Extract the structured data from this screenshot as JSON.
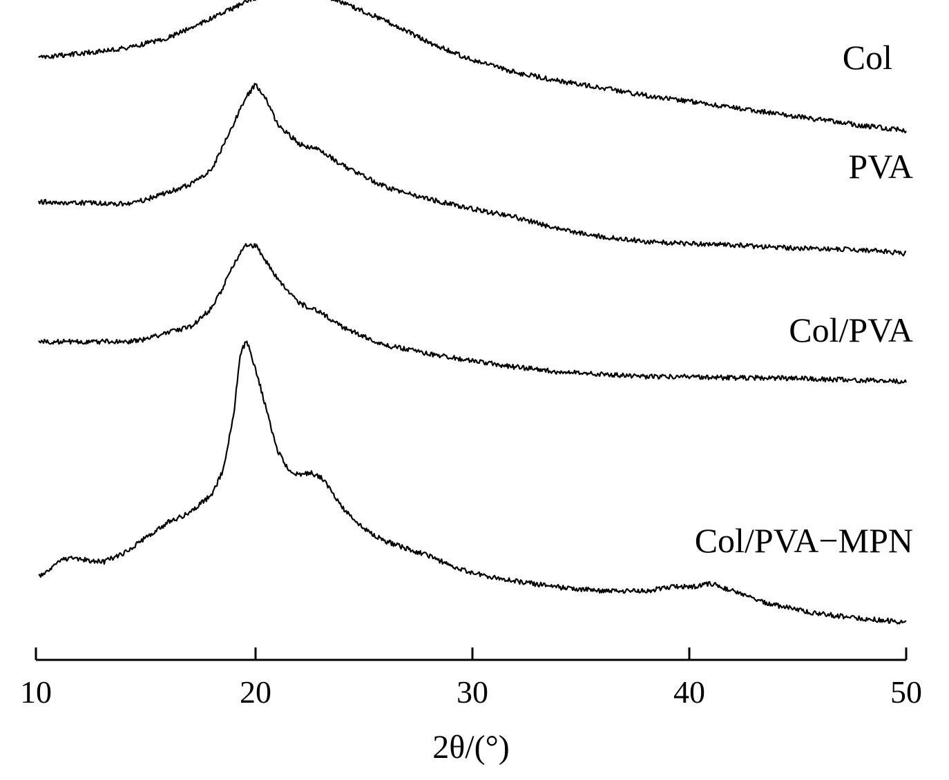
{
  "chart_data": {
    "type": "line",
    "title": "",
    "xlabel": "2θ/(°)",
    "ylabel": "",
    "xlim": [
      10,
      50
    ],
    "xticks": [
      10,
      20,
      30,
      40,
      50
    ],
    "grid": false,
    "legend": "inline labels at right end of each trace",
    "series": [
      {
        "name": "Col",
        "color": "#000000",
        "x": [
          10,
          12,
          14,
          16,
          18,
          20,
          21,
          22,
          23,
          24,
          26,
          28,
          30,
          32,
          34,
          36,
          38,
          40,
          42,
          44,
          46,
          48,
          50
        ],
        "y": [
          0.0,
          0.04,
          0.08,
          0.17,
          0.33,
          0.5,
          0.56,
          0.56,
          0.53,
          0.46,
          0.31,
          0.13,
          -0.02,
          -0.12,
          -0.19,
          -0.25,
          -0.31,
          -0.36,
          -0.41,
          -0.46,
          -0.51,
          -0.56,
          -0.6
        ]
      },
      {
        "name": "PVA",
        "color": "#000000",
        "x": [
          10,
          12,
          14,
          15,
          16,
          17,
          18,
          19,
          19.5,
          20,
          20.5,
          21,
          22,
          23,
          24,
          26,
          28,
          30,
          32,
          34,
          36,
          38,
          40,
          42,
          44,
          46,
          48,
          50
        ],
        "y": [
          0.0,
          -0.01,
          -0.02,
          0.02,
          0.08,
          0.14,
          0.27,
          0.65,
          0.85,
          0.97,
          0.85,
          0.64,
          0.48,
          0.42,
          0.3,
          0.12,
          0.02,
          -0.06,
          -0.13,
          -0.23,
          -0.29,
          -0.33,
          -0.35,
          -0.36,
          -0.38,
          -0.39,
          -0.4,
          -0.43
        ]
      },
      {
        "name": "Col/PVA",
        "color": "#000000",
        "x": [
          10,
          12,
          14,
          15,
          16,
          17,
          18,
          18.5,
          19,
          19.5,
          20,
          20.5,
          21,
          22,
          23,
          24,
          26,
          28,
          30,
          32,
          34,
          36,
          38,
          40,
          42,
          44,
          46,
          48,
          50
        ],
        "y": [
          0.0,
          0.0,
          0.0,
          0.02,
          0.08,
          0.12,
          0.28,
          0.45,
          0.64,
          0.79,
          0.8,
          0.66,
          0.52,
          0.32,
          0.24,
          0.12,
          -0.03,
          -0.1,
          -0.16,
          -0.21,
          -0.25,
          -0.27,
          -0.29,
          -0.29,
          -0.3,
          -0.3,
          -0.31,
          -0.32,
          -0.33
        ]
      },
      {
        "name": "Col/PVA−MPN",
        "color": "#000000",
        "x": [
          10,
          11,
          11.5,
          12,
          13,
          14,
          15,
          16,
          17,
          18,
          18.5,
          19,
          19.3,
          19.6,
          20,
          20.5,
          21,
          21.5,
          22,
          22.5,
          23,
          23.5,
          24,
          25,
          26,
          27,
          28,
          29,
          30,
          31,
          32,
          34,
          36,
          38,
          39,
          39.5,
          40,
          41,
          41.5,
          42,
          43,
          44,
          46,
          48,
          50
        ],
        "y": [
          0.0,
          0.13,
          0.16,
          0.14,
          0.12,
          0.2,
          0.33,
          0.45,
          0.53,
          0.68,
          0.88,
          1.35,
          1.85,
          1.95,
          1.72,
          1.38,
          1.05,
          0.88,
          0.84,
          0.86,
          0.82,
          0.71,
          0.57,
          0.39,
          0.29,
          0.23,
          0.17,
          0.09,
          0.03,
          -0.01,
          -0.04,
          -0.09,
          -0.12,
          -0.12,
          -0.09,
          -0.08,
          -0.09,
          -0.06,
          -0.09,
          -0.12,
          -0.19,
          -0.24,
          -0.31,
          -0.35,
          -0.38
        ]
      }
    ]
  }
}
